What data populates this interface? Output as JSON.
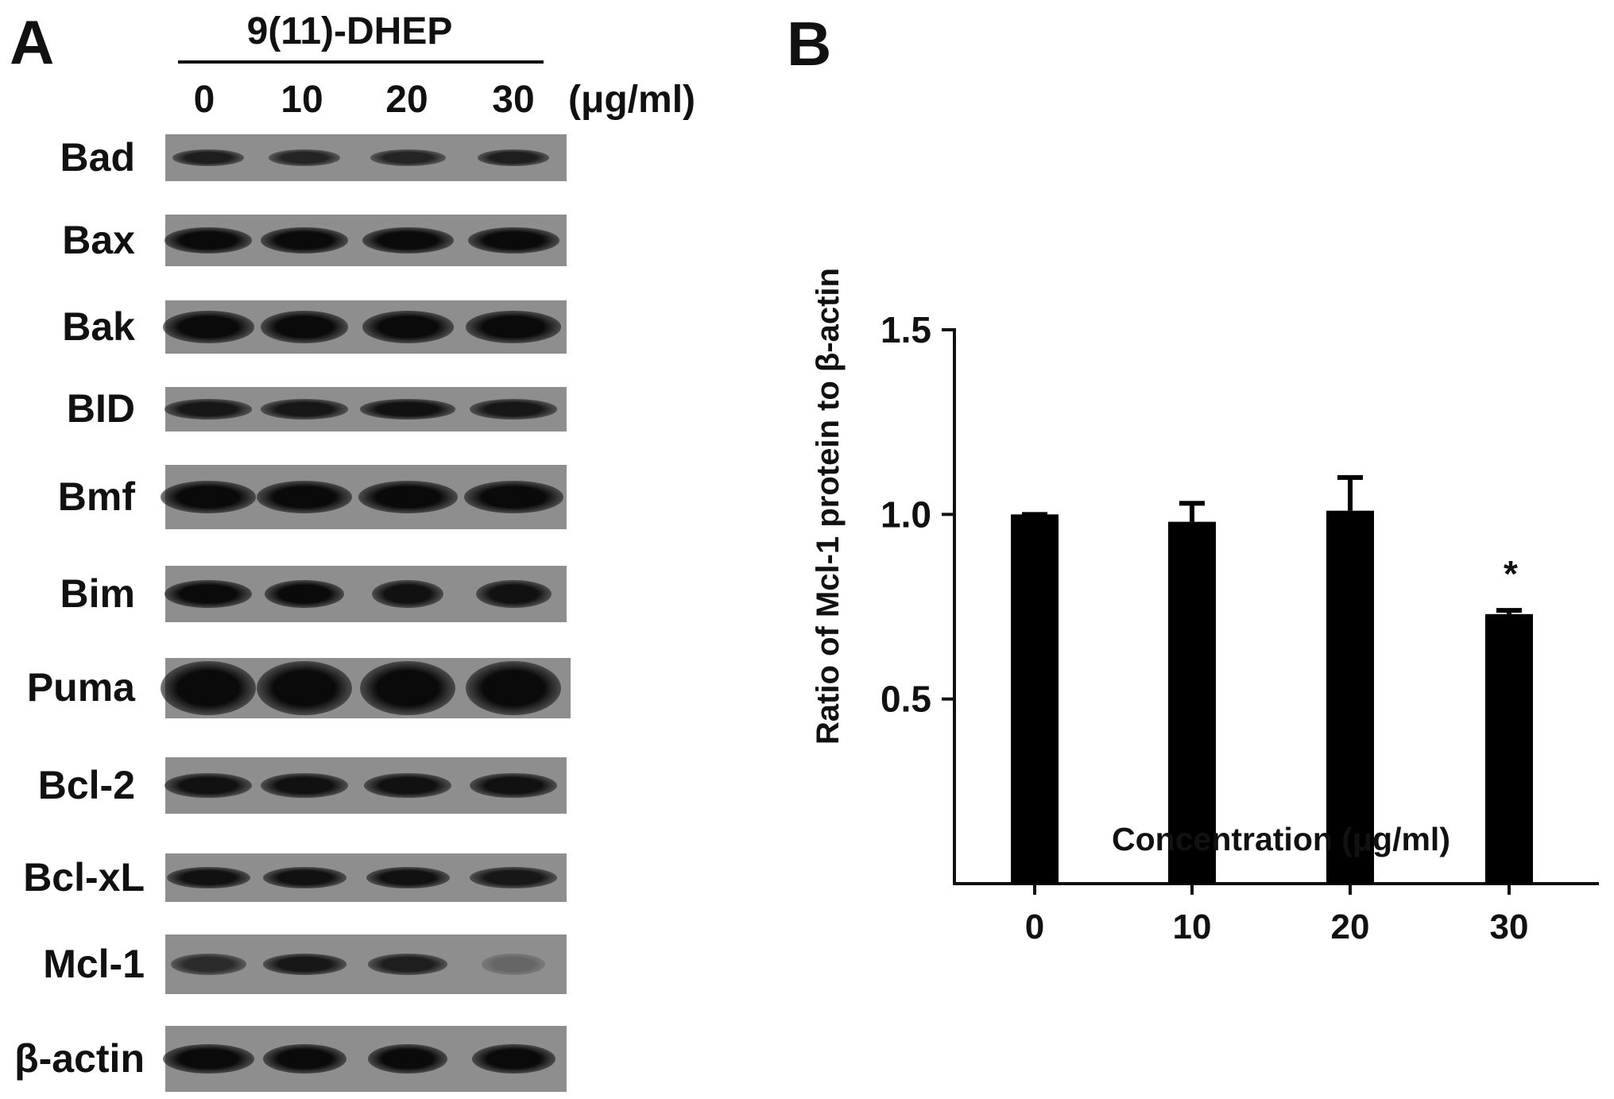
{
  "panel_a": {
    "letter": "A",
    "treatment": "9(11)-DHEP",
    "lanes": [
      "0",
      "10",
      "20",
      "30"
    ],
    "unit": "(μg/ml)",
    "proteins": [
      "Bad",
      "Bax",
      "Bak",
      "BID",
      "Bmf",
      "Bim",
      "Puma",
      "Bcl-2",
      "Bcl-xL",
      "Mcl-1",
      "β-actin"
    ]
  },
  "panel_b": {
    "letter": "B"
  },
  "chart_data": {
    "type": "bar",
    "categories": [
      "0",
      "10",
      "20",
      "30"
    ],
    "values": [
      1.0,
      0.98,
      1.01,
      0.73
    ],
    "error_upper": [
      1.0,
      1.03,
      1.1,
      0.74
    ],
    "annotations": [
      "",
      "",
      "",
      "*"
    ],
    "xlabel": "Concentration (μg/ml)",
    "ylabel": "Ratio of Mcl-1 protein to β-actin",
    "ylim": [
      0,
      1.5
    ],
    "yticks": [
      "0.5",
      "1.0",
      "1.5"
    ],
    "grid": false,
    "bar_color": "#000000"
  }
}
